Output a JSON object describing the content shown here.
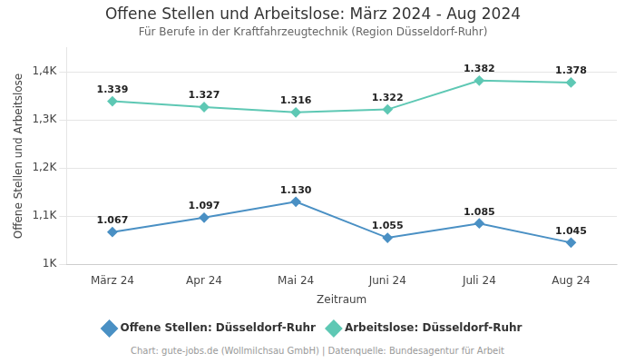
{
  "chart_data": {
    "type": "line",
    "title": "Offene Stellen und Arbeitslose: März 2024 - Aug 2024",
    "subtitle": "Für Berufe in der Kraftfahrzeugtechnik (Region Düsseldorf-Ruhr)",
    "x_label": "Zeitraum",
    "y_label": "Offene Stellen und Arbeitslose",
    "footer": "Chart: gute-jobs.de (Wollmilchsau GmbH) | Datenquelle: Bundesagentur für Arbeit",
    "categories": [
      "März 24",
      "Apr 24",
      "Mai 24",
      "Juni 24",
      "Juli 24",
      "Aug 24"
    ],
    "series": [
      {
        "name": "Offene Stellen: Düsseldorf-Ruhr",
        "color": "#4a90c4",
        "marker": "diamond",
        "values": [
          1067,
          1097,
          1130,
          1055,
          1085,
          1045
        ],
        "value_labels": [
          "1.067",
          "1.097",
          "1.130",
          "1.055",
          "1.085",
          "1.045"
        ]
      },
      {
        "name": "Arbeitslose: Düsseldorf-Ruhr",
        "color": "#5ec8b4",
        "marker": "diamond",
        "values": [
          1339,
          1327,
          1316,
          1322,
          1382,
          1378
        ],
        "value_labels": [
          "1.339",
          "1.327",
          "1.316",
          "1.322",
          "1.382",
          "1.378"
        ]
      }
    ],
    "ylim": [
      1000,
      1450
    ],
    "yticks": [
      {
        "value": 1000,
        "label": "1K"
      },
      {
        "value": 1100,
        "label": "1,1K"
      },
      {
        "value": 1200,
        "label": "1,2K"
      },
      {
        "value": 1300,
        "label": "1,3K"
      },
      {
        "value": 1400,
        "label": "1,4K"
      }
    ],
    "grid": "y",
    "legend": "bottom",
    "data_labels": true
  }
}
